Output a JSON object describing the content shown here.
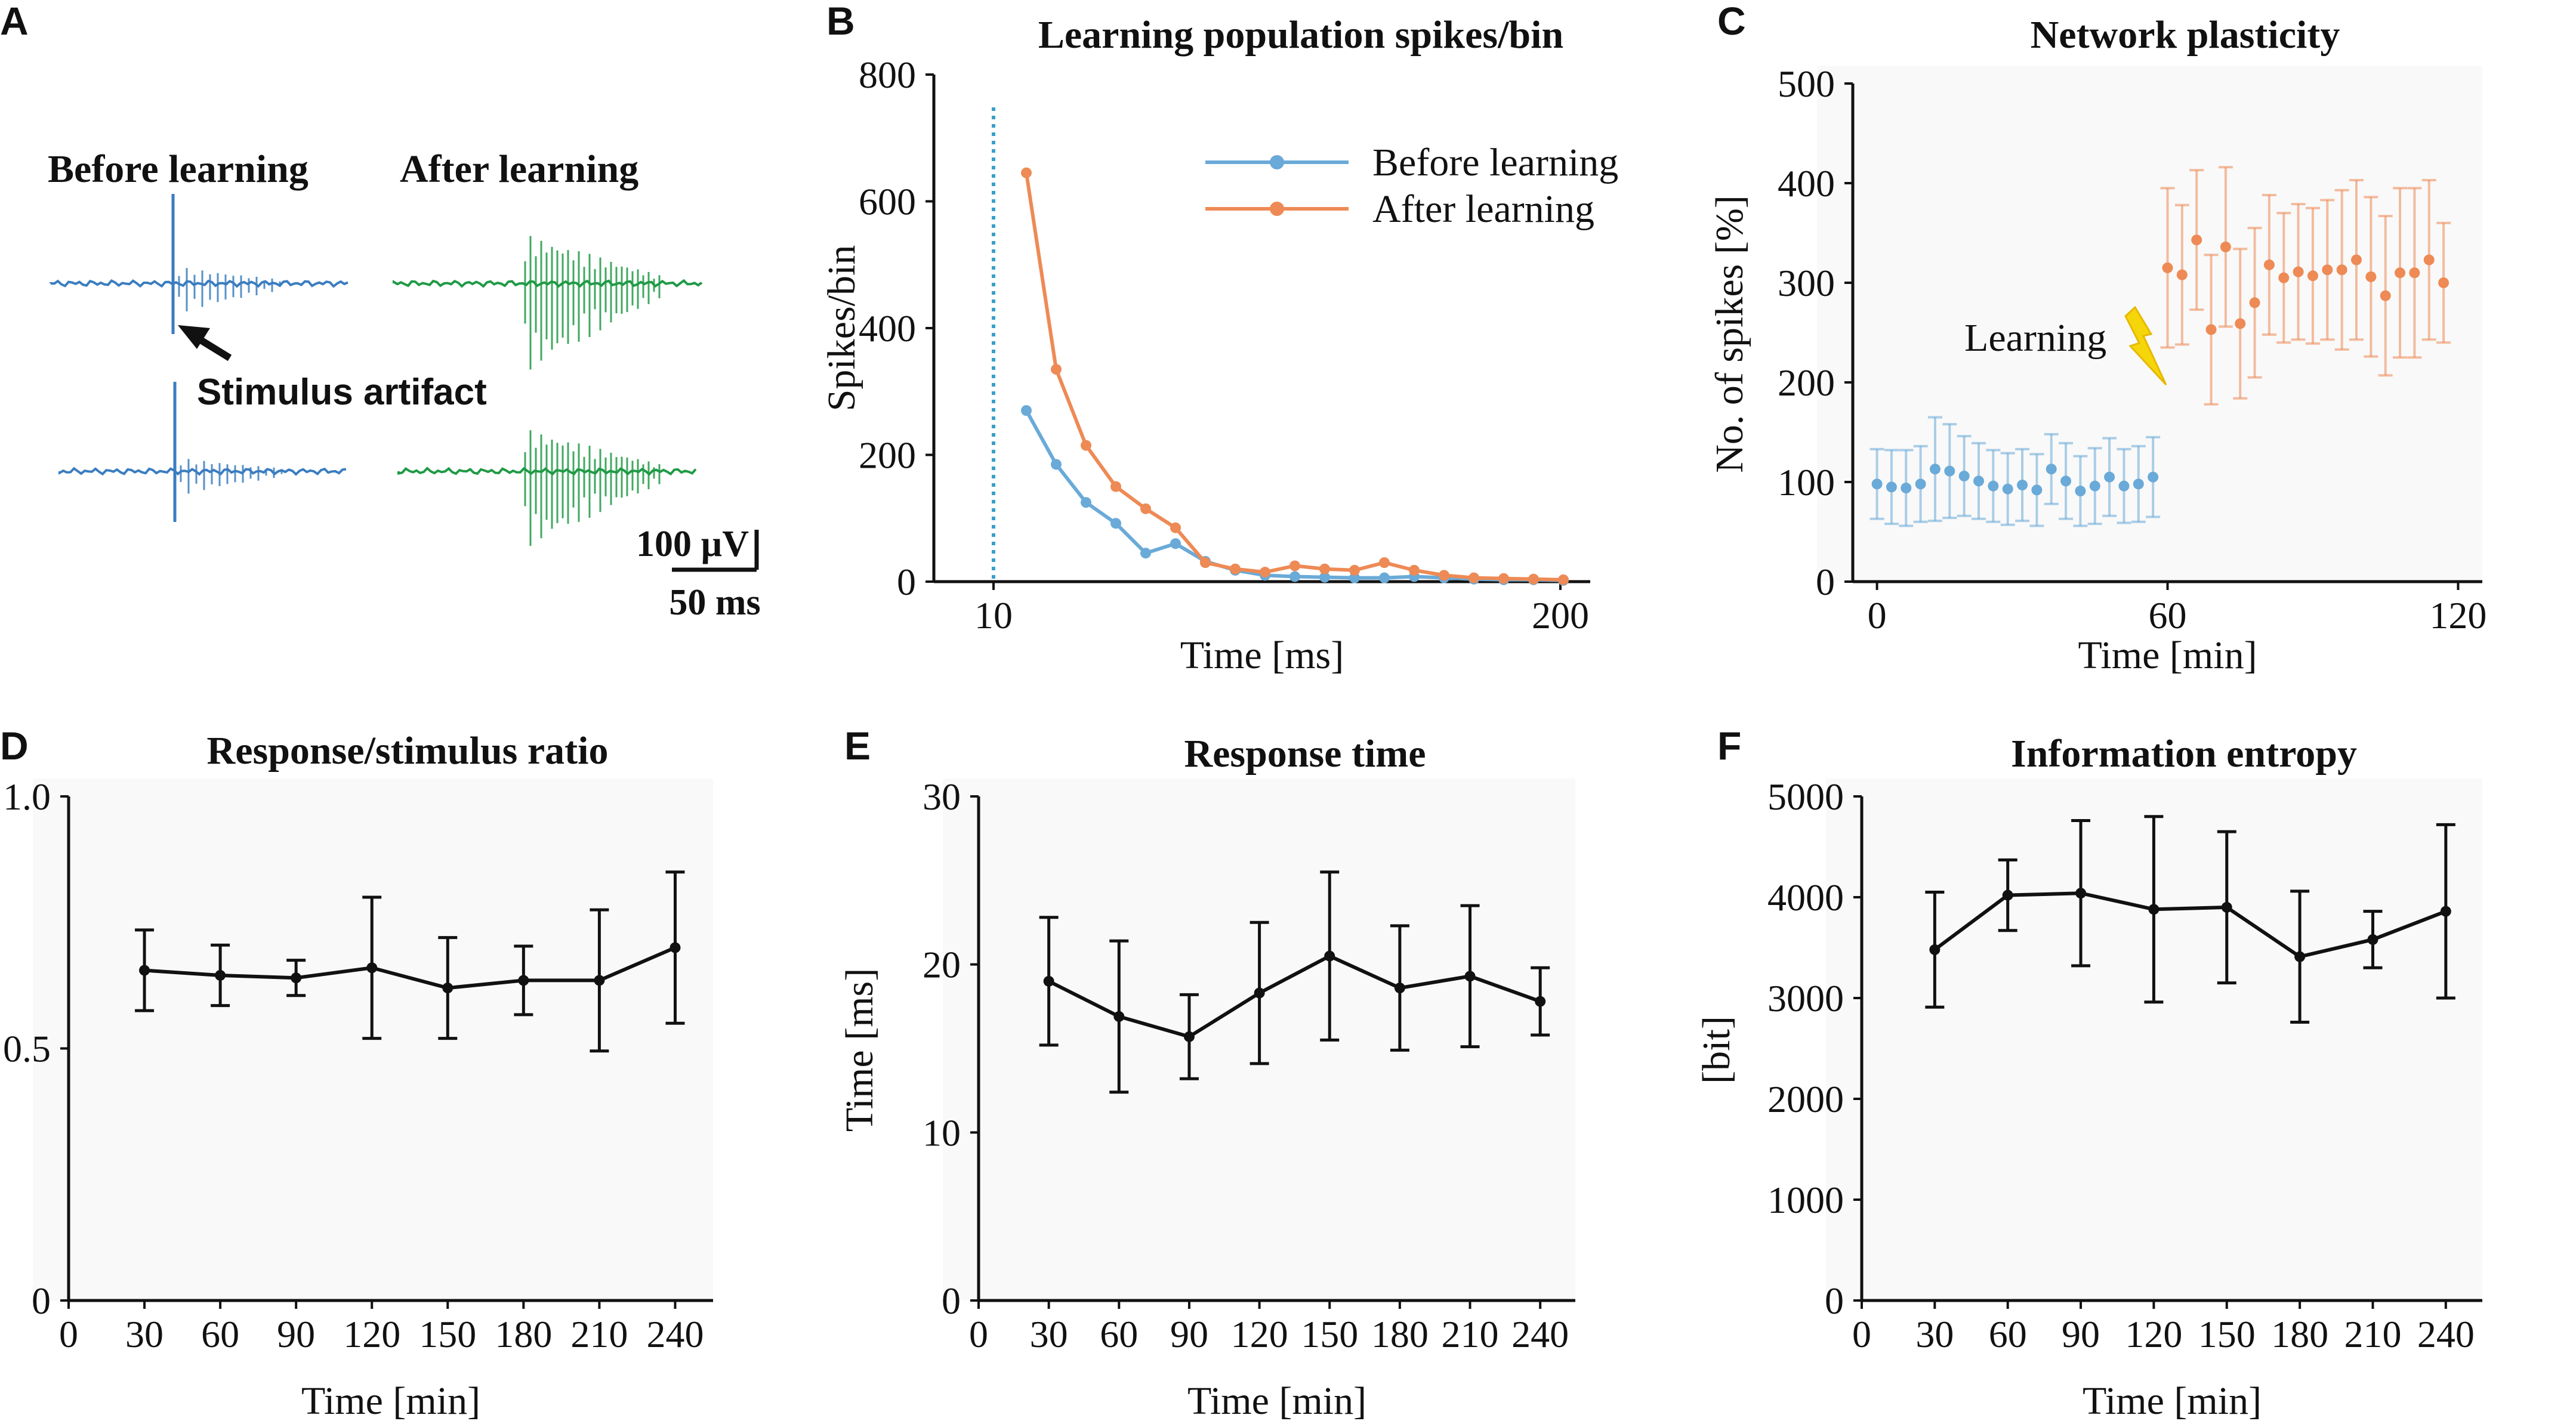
{
  "panel_a": {
    "letter": "A",
    "before_label": "Before learning",
    "after_label": "After learning",
    "artifact_label": "Stimulus artifact",
    "scale_voltage": "100 µV",
    "scale_time": "50 ms",
    "colors": {
      "before": "#3a7dc0",
      "after": "#1f9a45"
    }
  },
  "chart_data": [
    {
      "id": "B",
      "type": "line",
      "letter": "B",
      "title": "Learning population spikes/bin",
      "xlabel": "Time [ms]",
      "ylabel": "Spikes/bin",
      "xlim": [
        -10,
        210
      ],
      "ylim": [
        0,
        800
      ],
      "xticks": [
        10,
        200
      ],
      "yticks": [
        0,
        200,
        400,
        600,
        800
      ],
      "stimulus_marker_x": 10,
      "series": [
        {
          "name": "Before learning",
          "color": "#6aaad8",
          "x": [
            21,
            31,
            41,
            51,
            61,
            71,
            81,
            91,
            101,
            111,
            121,
            131,
            141,
            151,
            161,
            171,
            181,
            191,
            201
          ],
          "y": [
            270,
            185,
            125,
            92,
            45,
            60,
            32,
            18,
            10,
            8,
            7,
            6,
            6,
            8,
            6,
            4,
            3,
            3,
            2
          ]
        },
        {
          "name": "After learning",
          "color": "#ee8a55",
          "x": [
            21,
            31,
            41,
            51,
            61,
            71,
            81,
            91,
            101,
            111,
            121,
            131,
            141,
            151,
            161,
            171,
            181,
            191,
            201
          ],
          "y": [
            645,
            335,
            215,
            150,
            115,
            85,
            30,
            20,
            15,
            25,
            20,
            18,
            30,
            18,
            10,
            6,
            5,
            4,
            3
          ]
        }
      ]
    },
    {
      "id": "C",
      "type": "scatter",
      "letter": "C",
      "title": "Network plasticity",
      "xlabel": "Time [min]",
      "ylabel": "No. of spikes [%]",
      "xlim": [
        -5,
        125
      ],
      "ylim": [
        0,
        500
      ],
      "xticks": [
        0,
        60,
        120
      ],
      "yticks": [
        0,
        100,
        200,
        300,
        400,
        500
      ],
      "annotation": "Learning",
      "series": [
        {
          "name": "Before learning",
          "color": "#6aaad8",
          "x": [
            0,
            3,
            6,
            9,
            12,
            15,
            18,
            21,
            24,
            27,
            30,
            33,
            36,
            39,
            42,
            45,
            48,
            51,
            54,
            57
          ],
          "y": [
            98,
            95,
            94,
            98,
            113,
            111,
            106,
            101,
            96,
            93,
            97,
            92,
            113,
            101,
            91,
            96,
            105,
            96,
            98,
            105
          ],
          "err": [
            35,
            37,
            38,
            38,
            52,
            47,
            40,
            38,
            36,
            36,
            36,
            36,
            35,
            38,
            35,
            38,
            39,
            37,
            38,
            40
          ]
        },
        {
          "name": "After learning",
          "color": "#ee8a55",
          "x": [
            60,
            63,
            66,
            69,
            72,
            75,
            78,
            81,
            84,
            87,
            90,
            93,
            96,
            99,
            102,
            105,
            108,
            111,
            114,
            117
          ],
          "y": [
            315,
            308,
            343,
            253,
            336,
            259,
            280,
            318,
            305,
            311,
            307,
            313,
            313,
            323,
            306,
            287,
            310,
            310,
            323,
            300
          ],
          "err": [
            80,
            70,
            70,
            75,
            80,
            75,
            75,
            70,
            65,
            68,
            68,
            70,
            80,
            80,
            80,
            80,
            85,
            85,
            80,
            60
          ]
        }
      ]
    },
    {
      "id": "D",
      "type": "line",
      "letter": "D",
      "title": "Response/stimulus ratio",
      "xlabel": "Time [min]",
      "ylabel": "",
      "xlim": [
        0,
        255
      ],
      "ylim": [
        0,
        1.0
      ],
      "xticks": [
        0,
        30,
        60,
        90,
        120,
        150,
        180,
        210,
        240
      ],
      "yticks": [
        0,
        0.5,
        1.0
      ],
      "ytick_labels": [
        "0",
        "0.5",
        "1.0"
      ],
      "series": [
        {
          "name": "ratio",
          "color": "#111111",
          "x": [
            30,
            60,
            90,
            120,
            150,
            180,
            210,
            240
          ],
          "y": [
            0.655,
            0.645,
            0.64,
            0.66,
            0.62,
            0.635,
            0.635,
            0.7
          ],
          "err": [
            0.08,
            0.06,
            0.035,
            0.14,
            0.1,
            0.068,
            0.14,
            0.15
          ]
        }
      ]
    },
    {
      "id": "E",
      "type": "line",
      "letter": "E",
      "title": "Response time",
      "xlabel": "Time [min]",
      "ylabel": "Time [ms]",
      "xlim": [
        0,
        255
      ],
      "ylim": [
        0,
        30
      ],
      "xticks": [
        0,
        30,
        60,
        90,
        120,
        150,
        180,
        210,
        240
      ],
      "yticks": [
        0,
        10,
        20,
        30
      ],
      "series": [
        {
          "name": "response time",
          "color": "#111111",
          "x": [
            30,
            60,
            90,
            120,
            150,
            180,
            210,
            240
          ],
          "y": [
            19.0,
            16.9,
            15.7,
            18.3,
            20.5,
            18.6,
            19.3,
            17.8
          ],
          "err": [
            3.8,
            4.5,
            2.5,
            4.2,
            5.0,
            3.7,
            4.2,
            2.0
          ]
        }
      ]
    },
    {
      "id": "F",
      "type": "line",
      "letter": "F",
      "title": "Information entropy",
      "xlabel": "Time [min]",
      "ylabel": "[bit]",
      "xlim": [
        0,
        255
      ],
      "ylim": [
        0,
        5000
      ],
      "xticks": [
        0,
        30,
        60,
        90,
        120,
        150,
        180,
        210,
        240
      ],
      "yticks": [
        0,
        1000,
        2000,
        3000,
        4000,
        5000
      ],
      "series": [
        {
          "name": "entropy",
          "color": "#111111",
          "x": [
            30,
            60,
            90,
            120,
            150,
            180,
            210,
            240
          ],
          "y": [
            3480,
            4020,
            4040,
            3880,
            3900,
            3410,
            3580,
            3860
          ],
          "err": [
            570,
            350,
            720,
            920,
            750,
            650,
            280,
            860
          ]
        }
      ]
    }
  ]
}
